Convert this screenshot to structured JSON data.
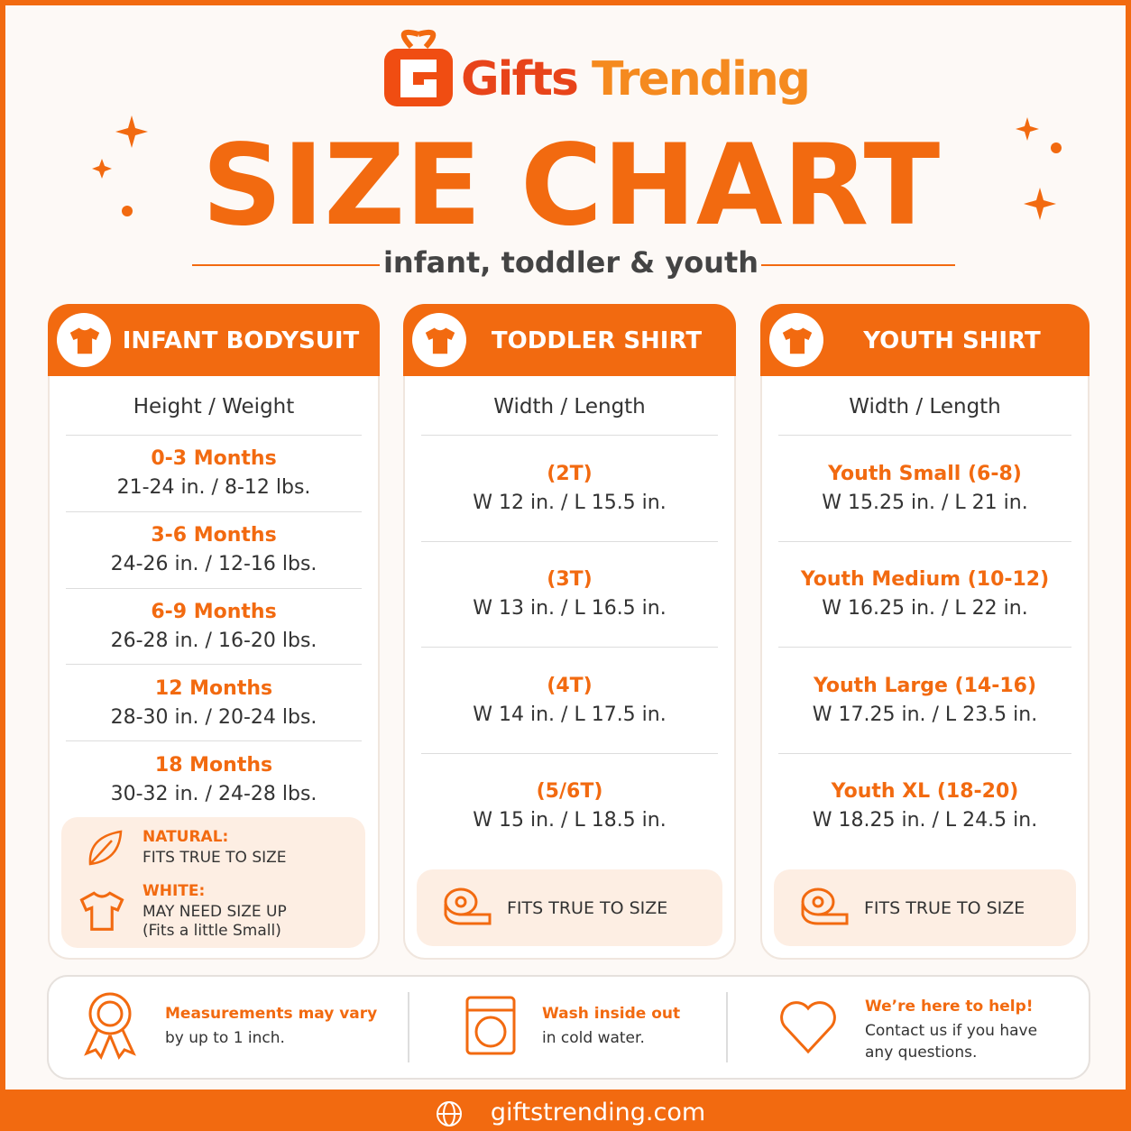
{
  "brand": {
    "first": "Gifts",
    "second": "Trending"
  },
  "title": "SIZE CHART",
  "subtitle": "infant, toddler & youth",
  "columns": [
    {
      "title": "INFANT BODYSUIT",
      "header": "Height / Weight",
      "rows": [
        {
          "label": "0-3 Months",
          "measure": "21-24 in. / 8-12 lbs."
        },
        {
          "label": "3-6 Months",
          "measure": "24-26 in. / 12-16 lbs."
        },
        {
          "label": "6-9 Months",
          "measure": "26-28 in. / 16-20 lbs."
        },
        {
          "label": "12 Months",
          "measure": "28-30 in. / 20-24 lbs."
        },
        {
          "label": "18 Months",
          "measure": "30-32 in. / 24-28 lbs."
        }
      ],
      "notes": [
        {
          "label": "NATURAL:",
          "text": "FITS TRUE TO SIZE"
        },
        {
          "label": "WHITE:",
          "text": "MAY NEED SIZE UP",
          "sub": "(Fits a little Small)"
        }
      ]
    },
    {
      "title": "TODDLER SHIRT",
      "header": "Width / Length",
      "rows": [
        {
          "label": "(2T)",
          "measure": "W 12 in. / L 15.5 in."
        },
        {
          "label": "(3T)",
          "measure": "W 13 in. / L 16.5 in."
        },
        {
          "label": "(4T)",
          "measure": "W 14 in. / L 17.5 in."
        },
        {
          "label": "(5/6T)",
          "measure": "W 15 in. / L 18.5 in."
        }
      ],
      "note": "FITS TRUE TO SIZE"
    },
    {
      "title": "YOUTH SHIRT",
      "header": "Width / Length",
      "rows": [
        {
          "label": "Youth Small (6-8)",
          "measure": "W 15.25 in. / L 21 in."
        },
        {
          "label": "Youth Medium (10-12)",
          "measure": "W 16.25 in. / L 22 in."
        },
        {
          "label": "Youth Large (14-16)",
          "measure": "W 17.25 in. / L 23.5 in."
        },
        {
          "label": "Youth XL (18-20)",
          "measure": "W 18.25 in. / L 24.5 in."
        }
      ],
      "note": "FITS TRUE TO SIZE"
    }
  ],
  "tips": [
    {
      "title": "Measurements may vary",
      "text": "by up to 1 inch."
    },
    {
      "title": "Wash inside out",
      "text": "in cold water."
    },
    {
      "title": "We’re here to help!",
      "text": "Contact us if you have any questions."
    }
  ],
  "website": "giftstrending.com"
}
